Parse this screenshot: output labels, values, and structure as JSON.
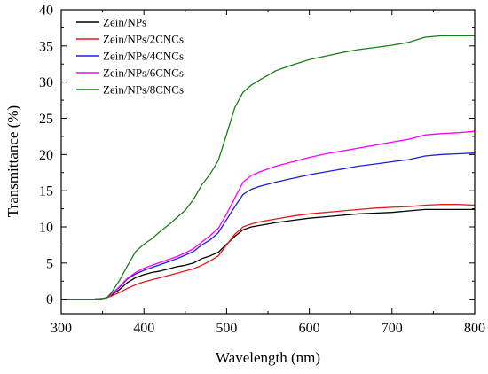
{
  "chart_data": {
    "type": "line",
    "title": "",
    "xlabel": "Wavelength (nm)",
    "ylabel": "Transmittance (%)",
    "xlim": [
      300,
      800
    ],
    "ylim": [
      -2,
      40
    ],
    "xticks": [
      300,
      400,
      500,
      600,
      700,
      800
    ],
    "yticks": [
      0,
      5,
      10,
      15,
      20,
      25,
      30,
      35,
      40
    ],
    "grid": false,
    "legend_position": "top-left",
    "series": [
      {
        "name": "Zein/NPs",
        "color": "#000000",
        "x": [
          300,
          340,
          350,
          355,
          360,
          370,
          380,
          390,
          400,
          410,
          420,
          430,
          440,
          450,
          460,
          470,
          480,
          490,
          500,
          510,
          520,
          530,
          540,
          560,
          580,
          600,
          620,
          640,
          660,
          680,
          700,
          720,
          740,
          760,
          780,
          800
        ],
        "y": [
          0,
          0,
          0.1,
          0.2,
          0.5,
          1.3,
          2.3,
          3.0,
          3.4,
          3.7,
          3.9,
          4.2,
          4.5,
          4.7,
          5.0,
          5.6,
          6.0,
          6.5,
          7.6,
          8.7,
          9.6,
          10.0,
          10.2,
          10.6,
          10.9,
          11.2,
          11.4,
          11.6,
          11.8,
          11.9,
          12.0,
          12.2,
          12.4,
          12.4,
          12.4,
          12.4
        ]
      },
      {
        "name": "Zein/NPs/2CNCs",
        "color": "#e41a1c",
        "x": [
          300,
          340,
          350,
          355,
          360,
          370,
          380,
          390,
          400,
          410,
          420,
          430,
          440,
          450,
          460,
          470,
          480,
          490,
          500,
          510,
          520,
          530,
          540,
          560,
          580,
          600,
          620,
          640,
          660,
          680,
          700,
          720,
          740,
          760,
          780,
          800
        ],
        "y": [
          0,
          0,
          0.1,
          0.2,
          0.4,
          0.9,
          1.5,
          2.0,
          2.4,
          2.7,
          3.0,
          3.3,
          3.6,
          3.9,
          4.2,
          4.7,
          5.3,
          6.0,
          7.5,
          9.0,
          10.0,
          10.4,
          10.7,
          11.1,
          11.5,
          11.8,
          12.0,
          12.2,
          12.4,
          12.6,
          12.7,
          12.8,
          13.0,
          13.1,
          13.1,
          13.0
        ]
      },
      {
        "name": "Zein/NPs/4CNCs",
        "color": "#1f1fd6",
        "x": [
          300,
          340,
          350,
          355,
          360,
          370,
          380,
          390,
          400,
          410,
          420,
          430,
          440,
          450,
          460,
          470,
          480,
          490,
          500,
          510,
          520,
          530,
          540,
          560,
          580,
          600,
          620,
          640,
          660,
          680,
          700,
          720,
          740,
          760,
          780,
          800
        ],
        "y": [
          0,
          0,
          0.1,
          0.2,
          0.6,
          1.6,
          2.8,
          3.5,
          4.0,
          4.4,
          4.8,
          5.2,
          5.6,
          6.1,
          6.6,
          7.5,
          8.2,
          9.2,
          11.0,
          12.8,
          14.5,
          15.2,
          15.6,
          16.2,
          16.7,
          17.2,
          17.6,
          18.0,
          18.4,
          18.7,
          19.0,
          19.3,
          19.8,
          20.0,
          20.1,
          20.2
        ]
      },
      {
        "name": "Zein/NPs/6CNCs",
        "color": "#ff00ff",
        "x": [
          300,
          340,
          350,
          355,
          360,
          370,
          380,
          390,
          400,
          410,
          420,
          430,
          440,
          450,
          460,
          470,
          480,
          490,
          500,
          510,
          520,
          530,
          540,
          560,
          580,
          600,
          620,
          640,
          660,
          680,
          700,
          720,
          740,
          760,
          780,
          800
        ],
        "y": [
          0,
          0,
          0.1,
          0.2,
          0.6,
          1.7,
          2.9,
          3.7,
          4.3,
          4.7,
          5.1,
          5.5,
          5.9,
          6.4,
          7.0,
          7.9,
          8.8,
          9.8,
          11.8,
          14.0,
          16.2,
          17.1,
          17.6,
          18.4,
          19.0,
          19.6,
          20.1,
          20.5,
          20.9,
          21.3,
          21.7,
          22.1,
          22.7,
          22.9,
          23.0,
          23.2
        ]
      },
      {
        "name": "Zein/NPs/8CNCs",
        "color": "#1a7f1a",
        "x": [
          300,
          340,
          350,
          355,
          360,
          370,
          380,
          390,
          400,
          410,
          420,
          430,
          440,
          450,
          460,
          470,
          480,
          490,
          500,
          510,
          520,
          530,
          540,
          560,
          580,
          600,
          620,
          640,
          660,
          680,
          700,
          720,
          740,
          760,
          780,
          800
        ],
        "y": [
          0,
          0,
          0.1,
          0.2,
          0.8,
          2.5,
          4.6,
          6.6,
          7.6,
          8.4,
          9.4,
          10.3,
          11.3,
          12.3,
          13.8,
          15.8,
          17.3,
          19.2,
          22.8,
          26.5,
          28.6,
          29.6,
          30.3,
          31.6,
          32.4,
          33.1,
          33.6,
          34.1,
          34.5,
          34.8,
          35.1,
          35.5,
          36.2,
          36.4,
          36.4,
          36.4
        ]
      }
    ]
  }
}
